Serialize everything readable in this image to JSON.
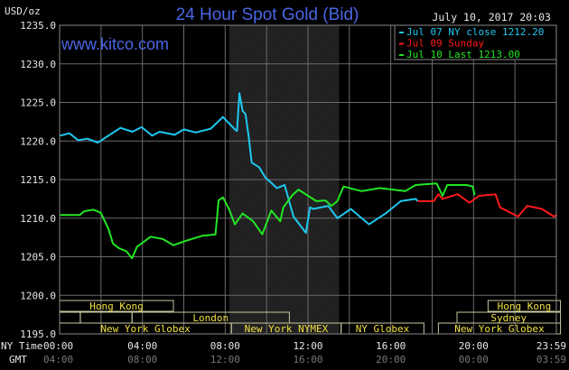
{
  "chart_data": {
    "type": "line",
    "title": "24 Hour Spot Gold (Bid)",
    "watermark": "www.kitco.com",
    "timestamp": "July 10, 2017 20:03",
    "ylabel": "USD/oz",
    "ylim": [
      1195,
      1235
    ],
    "y_ticks": [
      "1235.0",
      "1230.0",
      "1225.0",
      "1220.0",
      "1215.0",
      "1210.0",
      "1205.0",
      "1200.0",
      "1195.0"
    ],
    "xlim": [
      0,
      24
    ],
    "x_row_labels": {
      "ny": "NY Time",
      "gmt": "GMT"
    },
    "x_ticks_ny": [
      "00:00",
      "04:00",
      "08:00",
      "12:00",
      "16:00",
      "20:00",
      "23:59"
    ],
    "x_ticks_gmt": [
      "04:00",
      "08:00",
      "12:00",
      "16:00",
      "20:00",
      "00:00",
      "03:59"
    ],
    "grid": true,
    "legend_position": "top-right",
    "shaded_period_hours": [
      8.2,
      13.5
    ],
    "series": [
      {
        "name": "Jul 07 NY close 1212.20",
        "color": "#1ec8f0",
        "x": [
          0.03,
          0.47,
          0.9,
          1.34,
          1.85,
          2.36,
          2.94,
          3.52,
          3.96,
          4.47,
          4.83,
          5.56,
          6.0,
          6.58,
          7.3,
          7.89,
          8.47,
          8.57,
          8.69,
          8.84,
          8.98,
          9.13,
          9.28,
          9.64,
          9.93,
          10.5,
          10.87,
          11.3,
          11.9,
          12.1,
          12.26,
          12.98,
          13.42,
          14.07,
          14.95,
          15.75,
          16.48,
          17.2,
          17.3
        ],
        "y": [
          1220.7,
          1221.0,
          1220.1,
          1220.3,
          1219.8,
          1220.7,
          1221.7,
          1221.2,
          1221.8,
          1220.7,
          1221.2,
          1220.8,
          1221.5,
          1221.1,
          1221.6,
          1223.1,
          1221.5,
          1221.3,
          1226.2,
          1223.9,
          1223.5,
          1220.7,
          1217.2,
          1216.6,
          1215.3,
          1213.9,
          1214.3,
          1210.2,
          1208.1,
          1211.4,
          1211.2,
          1211.6,
          1210.0,
          1211.2,
          1209.2,
          1210.6,
          1212.2,
          1212.5,
          1212.2
        ]
      },
      {
        "name": "Jul 09 Sunday",
        "color": "#ff1a1a",
        "x": [
          17.3,
          18.07,
          18.3,
          18.5,
          19.24,
          19.8,
          20.26,
          21.06,
          21.28,
          22.15,
          22.59,
          23.3,
          23.88,
          24.0
        ],
        "y": [
          1212.2,
          1212.2,
          1213.1,
          1212.5,
          1213.1,
          1212.0,
          1212.9,
          1213.1,
          1211.4,
          1210.2,
          1211.6,
          1211.2,
          1210.2,
          1210.4
        ]
      },
      {
        "name": "Jul 10 Last 1213.00",
        "color": "#22e622",
        "x": [
          0.03,
          0.97,
          1.19,
          1.63,
          1.99,
          2.36,
          2.58,
          2.87,
          3.23,
          3.5,
          3.74,
          4.4,
          4.98,
          5.5,
          6.15,
          6.87,
          7.53,
          7.68,
          7.89,
          8.18,
          8.47,
          8.84,
          9.35,
          9.79,
          10.23,
          10.66,
          10.81,
          11.25,
          11.54,
          12.4,
          12.84,
          13.13,
          13.42,
          13.72,
          14.59,
          15.46,
          16.7,
          17.2,
          18.22,
          18.5,
          18.73,
          19.67,
          19.96,
          20.05
        ],
        "y": [
          1210.4,
          1210.4,
          1210.9,
          1211.1,
          1210.7,
          1208.6,
          1206.7,
          1206.1,
          1205.7,
          1204.8,
          1206.3,
          1207.6,
          1207.3,
          1206.5,
          1207.1,
          1207.7,
          1207.9,
          1212.3,
          1212.7,
          1211.2,
          1209.2,
          1210.6,
          1209.6,
          1207.9,
          1211.0,
          1209.6,
          1211.4,
          1213.0,
          1213.7,
          1212.2,
          1212.3,
          1211.6,
          1212.2,
          1214.1,
          1213.5,
          1213.9,
          1213.5,
          1214.3,
          1214.5,
          1212.9,
          1214.3,
          1214.3,
          1214.1,
          1213.0
        ]
      }
    ],
    "sessions": [
      {
        "label": "Hong Kong",
        "row": 0,
        "start": 0,
        "end": 5.5
      },
      {
        "label": "Hong Kong",
        "row": 0,
        "start": 20.7,
        "end": 24.2
      },
      {
        "label": "",
        "row": 1,
        "start": 0,
        "end": 1.0
      },
      {
        "label": "",
        "row": 1,
        "start": 1.0,
        "end": 3.5
      },
      {
        "label": "London",
        "row": 1,
        "start": 3.5,
        "end": 11.1
      },
      {
        "label": "Sydney",
        "row": 1,
        "start": 19.2,
        "end": 24.2
      },
      {
        "label": "New York Globex",
        "row": 2,
        "start": 0,
        "end": 8.3
      },
      {
        "label": "New York NYMEX",
        "row": 2,
        "start": 8.3,
        "end": 13.6
      },
      {
        "label": "NY Globex",
        "row": 2,
        "start": 13.6,
        "end": 17.6
      },
      {
        "label": "New York Globex",
        "row": 2,
        "start": 18.3,
        "end": 24.2
      }
    ]
  }
}
